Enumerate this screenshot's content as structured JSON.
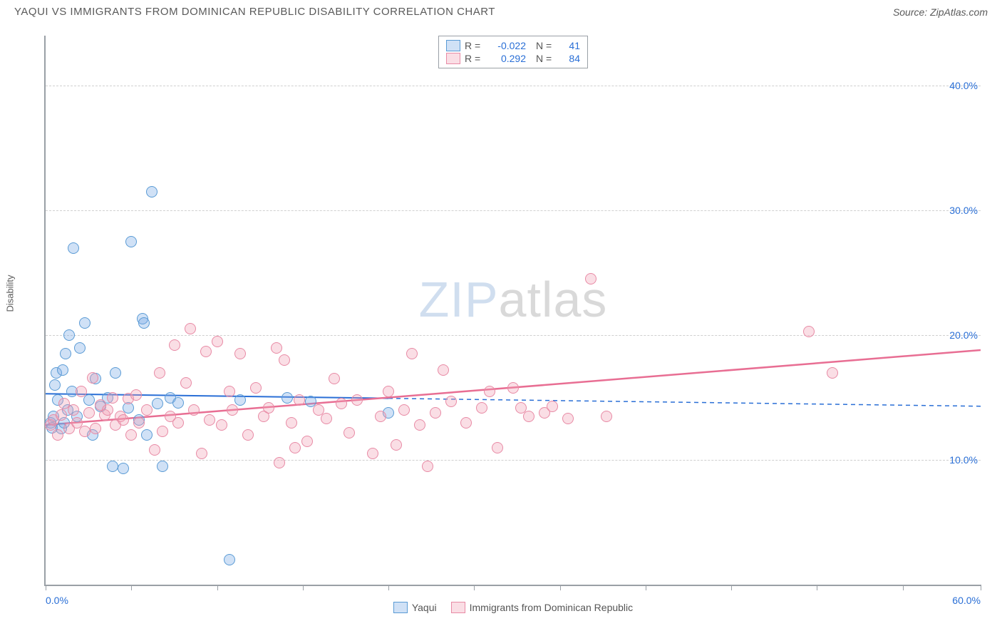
{
  "header": {
    "title": "YAQUI VS IMMIGRANTS FROM DOMINICAN REPUBLIC DISABILITY CORRELATION CHART",
    "source": "Source: ZipAtlas.com"
  },
  "ylabel": "Disability",
  "watermark": {
    "brand": "ZIP",
    "rest": "atlas"
  },
  "chart": {
    "type": "scatter",
    "xlim": [
      0,
      60
    ],
    "ylim": [
      0,
      44
    ],
    "x_tick_positions": [
      0,
      5.5,
      11,
      16.5,
      22,
      27.5,
      33,
      38.5,
      44,
      49.5,
      55,
      60
    ],
    "x_tick_labels": {
      "0": "0.0%",
      "60": "60.0%"
    },
    "y_gridlines": [
      10,
      20,
      30,
      40
    ],
    "y_tick_labels": {
      "10": "10.0%",
      "20": "20.0%",
      "30": "30.0%",
      "40": "40.0%"
    },
    "grid_color": "#cfcfcf",
    "axis_color": "#9aa0a6",
    "label_color": "#2a6fd6",
    "background_color": "#ffffff",
    "marker_radius": 8,
    "marker_stroke_width": 1.5,
    "series": [
      {
        "name": "Yaqui",
        "fill": "rgba(120,170,230,0.35)",
        "stroke": "#5a9bd5",
        "R": "-0.022",
        "N": "41",
        "trend": {
          "y_at_x0": 15.3,
          "y_at_x60": 14.3,
          "solid_until_x": 22,
          "color": "#2a6fd6",
          "width": 2
        },
        "points": [
          [
            0.3,
            13.0
          ],
          [
            0.4,
            12.6
          ],
          [
            0.5,
            13.5
          ],
          [
            0.6,
            16.0
          ],
          [
            0.7,
            17.0
          ],
          [
            0.8,
            14.8
          ],
          [
            1.0,
            12.5
          ],
          [
            1.1,
            17.2
          ],
          [
            1.2,
            13.0
          ],
          [
            1.3,
            18.5
          ],
          [
            1.4,
            14.0
          ],
          [
            1.5,
            20.0
          ],
          [
            1.7,
            15.5
          ],
          [
            1.8,
            27.0
          ],
          [
            2.0,
            13.5
          ],
          [
            2.2,
            19.0
          ],
          [
            2.5,
            21.0
          ],
          [
            2.8,
            14.8
          ],
          [
            3.0,
            12.0
          ],
          [
            3.2,
            16.5
          ],
          [
            3.5,
            14.3
          ],
          [
            4.0,
            15.0
          ],
          [
            4.3,
            9.5
          ],
          [
            4.5,
            17.0
          ],
          [
            5.0,
            9.3
          ],
          [
            5.3,
            14.2
          ],
          [
            5.5,
            27.5
          ],
          [
            6.0,
            13.2
          ],
          [
            6.2,
            21.3
          ],
          [
            6.3,
            21.0
          ],
          [
            6.5,
            12.0
          ],
          [
            6.8,
            31.5
          ],
          [
            7.2,
            14.5
          ],
          [
            7.5,
            9.5
          ],
          [
            8.0,
            15.0
          ],
          [
            8.5,
            14.6
          ],
          [
            11.8,
            2.0
          ],
          [
            12.5,
            14.8
          ],
          [
            15.5,
            15.0
          ],
          [
            17.0,
            14.7
          ],
          [
            22.0,
            13.8
          ]
        ]
      },
      {
        "name": "Immigrants from Dominican Republic",
        "fill": "rgba(240,160,180,0.35)",
        "stroke": "#e88aa5",
        "R": "0.292",
        "N": "84",
        "trend": {
          "y_at_x0": 12.8,
          "y_at_x60": 18.8,
          "solid_until_x": 60,
          "color": "#e86e93",
          "width": 2.5
        },
        "points": [
          [
            0.3,
            12.8
          ],
          [
            0.5,
            13.2
          ],
          [
            0.8,
            12.0
          ],
          [
            1.0,
            13.6
          ],
          [
            1.2,
            14.5
          ],
          [
            1.5,
            12.5
          ],
          [
            1.8,
            14.0
          ],
          [
            2.0,
            13.0
          ],
          [
            2.3,
            15.5
          ],
          [
            2.5,
            12.3
          ],
          [
            2.8,
            13.8
          ],
          [
            3.0,
            16.6
          ],
          [
            3.2,
            12.5
          ],
          [
            3.5,
            14.4
          ],
          [
            3.8,
            13.6
          ],
          [
            4.0,
            14.0
          ],
          [
            4.3,
            15.0
          ],
          [
            4.5,
            12.8
          ],
          [
            4.8,
            13.5
          ],
          [
            5.0,
            13.2
          ],
          [
            5.3,
            14.9
          ],
          [
            5.5,
            12.0
          ],
          [
            5.8,
            15.2
          ],
          [
            6.0,
            13.0
          ],
          [
            6.5,
            14.0
          ],
          [
            7.0,
            10.8
          ],
          [
            7.3,
            17.0
          ],
          [
            7.5,
            12.3
          ],
          [
            8.0,
            13.5
          ],
          [
            8.3,
            19.2
          ],
          [
            8.5,
            13.0
          ],
          [
            9.0,
            16.2
          ],
          [
            9.3,
            20.5
          ],
          [
            9.5,
            14.0
          ],
          [
            10.0,
            10.5
          ],
          [
            10.3,
            18.7
          ],
          [
            10.5,
            13.2
          ],
          [
            11.0,
            19.5
          ],
          [
            11.3,
            12.8
          ],
          [
            11.8,
            15.5
          ],
          [
            12.0,
            14.0
          ],
          [
            12.5,
            18.5
          ],
          [
            13.0,
            12.0
          ],
          [
            13.5,
            15.8
          ],
          [
            14.0,
            13.5
          ],
          [
            14.3,
            14.2
          ],
          [
            14.8,
            19.0
          ],
          [
            15.0,
            9.8
          ],
          [
            15.3,
            18.0
          ],
          [
            15.8,
            13.0
          ],
          [
            16.0,
            11.0
          ],
          [
            16.3,
            14.8
          ],
          [
            16.8,
            11.5
          ],
          [
            17.5,
            14.0
          ],
          [
            18.0,
            13.3
          ],
          [
            18.5,
            16.5
          ],
          [
            19.0,
            14.5
          ],
          [
            19.5,
            12.2
          ],
          [
            20.0,
            14.8
          ],
          [
            21.0,
            10.5
          ],
          [
            21.5,
            13.5
          ],
          [
            22.0,
            15.5
          ],
          [
            22.5,
            11.2
          ],
          [
            23.0,
            14.0
          ],
          [
            23.5,
            18.5
          ],
          [
            24.0,
            12.8
          ],
          [
            24.5,
            9.5
          ],
          [
            25.0,
            13.8
          ],
          [
            25.5,
            17.2
          ],
          [
            26.0,
            14.7
          ],
          [
            27.0,
            13.0
          ],
          [
            28.0,
            14.2
          ],
          [
            28.5,
            15.5
          ],
          [
            29.0,
            11.0
          ],
          [
            30.0,
            15.8
          ],
          [
            30.5,
            14.2
          ],
          [
            31.0,
            13.5
          ],
          [
            32.0,
            13.8
          ],
          [
            32.5,
            14.3
          ],
          [
            33.5,
            13.3
          ],
          [
            35.0,
            24.5
          ],
          [
            36.0,
            13.5
          ],
          [
            49.0,
            20.3
          ],
          [
            50.5,
            17.0
          ]
        ]
      }
    ]
  },
  "legend_bottom": [
    {
      "label": "Yaqui",
      "fill": "rgba(120,170,230,0.35)",
      "stroke": "#5a9bd5"
    },
    {
      "label": "Immigrants from Dominican Republic",
      "fill": "rgba(240,160,180,0.35)",
      "stroke": "#e88aa5"
    }
  ]
}
